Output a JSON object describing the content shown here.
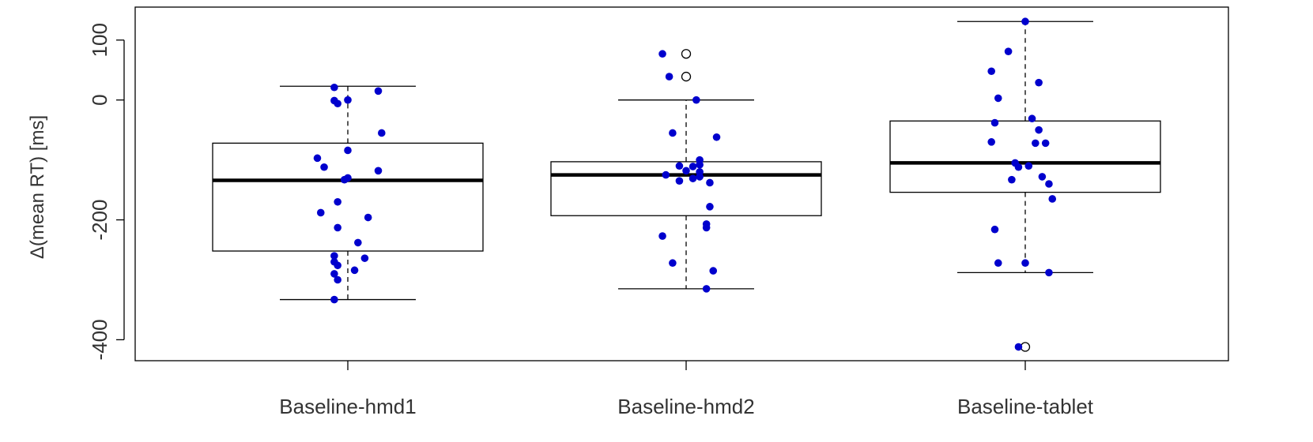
{
  "chart_data": {
    "type": "boxplot",
    "title": "",
    "xlabel": "",
    "ylabel": "Δ(mean RT) [ms]",
    "ylim": [
      -435,
      155
    ],
    "yticks": [
      100,
      0,
      -200,
      -400
    ],
    "grid": false,
    "legend": "none",
    "categories": [
      "Baseline-hmd1",
      "Baseline-hmd2",
      "Baseline-tablet"
    ],
    "boxes": [
      {
        "whisker_low": -333,
        "q1": -252,
        "median": -134,
        "q3": -72,
        "whisker_high": 23,
        "outliers": []
      },
      {
        "whisker_low": -315,
        "q1": -193,
        "median": -125,
        "q3": -103,
        "whisker_high": 0,
        "outliers": [
          77,
          39
        ]
      },
      {
        "whisker_low": -288,
        "q1": -154,
        "median": -105,
        "q3": -35,
        "whisker_high": 131,
        "outliers": [
          -412
        ]
      }
    ],
    "points": [
      {
        "category": 0,
        "jitter": -0.04,
        "values": [
          21,
          -1,
          -260,
          -270,
          -290,
          -333
        ]
      },
      {
        "category": 0,
        "jitter": -0.03,
        "values": [
          -6,
          -170,
          -213,
          -276
        ]
      },
      {
        "category": 0,
        "jitter": 0.0,
        "values": [
          0,
          -84,
          -130
        ]
      },
      {
        "category": 0,
        "jitter": -0.01,
        "values": [
          -133
        ]
      },
      {
        "category": 0,
        "jitter": 0.09,
        "values": [
          15,
          -118
        ]
      },
      {
        "category": 0,
        "jitter": 0.1,
        "values": [
          -55
        ]
      },
      {
        "category": 0,
        "jitter": -0.09,
        "values": [
          -97
        ]
      },
      {
        "category": 0,
        "jitter": -0.07,
        "values": [
          -112
        ]
      },
      {
        "category": 0,
        "jitter": -0.08,
        "values": [
          -188
        ]
      },
      {
        "category": 0,
        "jitter": 0.06,
        "values": [
          -196
        ]
      },
      {
        "category": 0,
        "jitter": 0.03,
        "values": [
          -238
        ]
      },
      {
        "category": 0,
        "jitter": 0.05,
        "values": [
          -264
        ]
      },
      {
        "category": 0,
        "jitter": 0.02,
        "values": [
          -284
        ]
      },
      {
        "category": 0,
        "jitter": -0.03,
        "values": [
          -300
        ]
      },
      {
        "category": 1,
        "jitter": -0.07,
        "values": [
          77
        ]
      },
      {
        "category": 1,
        "jitter": -0.05,
        "values": [
          39
        ]
      },
      {
        "category": 1,
        "jitter": 0.03,
        "values": [
          0
        ]
      },
      {
        "category": 1,
        "jitter": -0.04,
        "values": [
          -55
        ]
      },
      {
        "category": 1,
        "jitter": 0.09,
        "values": [
          -62
        ]
      },
      {
        "category": 1,
        "jitter": 0.04,
        "values": [
          -100,
          -108,
          -120,
          -128
        ]
      },
      {
        "category": 1,
        "jitter": 0.02,
        "values": [
          -111,
          -131
        ]
      },
      {
        "category": 1,
        "jitter": -0.02,
        "values": [
          -110,
          -135
        ]
      },
      {
        "category": 1,
        "jitter": 0.0,
        "values": [
          -118
        ]
      },
      {
        "category": 1,
        "jitter": -0.06,
        "values": [
          -125
        ]
      },
      {
        "category": 1,
        "jitter": 0.07,
        "values": [
          -138,
          -178
        ]
      },
      {
        "category": 1,
        "jitter": 0.06,
        "values": [
          -207,
          -213
        ]
      },
      {
        "category": 1,
        "jitter": -0.07,
        "values": [
          -227
        ]
      },
      {
        "category": 1,
        "jitter": -0.04,
        "values": [
          -272
        ]
      },
      {
        "category": 1,
        "jitter": 0.08,
        "values": [
          -285
        ]
      },
      {
        "category": 1,
        "jitter": 0.06,
        "values": [
          -315
        ]
      },
      {
        "category": 2,
        "jitter": 0.0,
        "values": [
          131
        ]
      },
      {
        "category": 2,
        "jitter": -0.05,
        "values": [
          81
        ]
      },
      {
        "category": 2,
        "jitter": -0.1,
        "values": [
          48
        ]
      },
      {
        "category": 2,
        "jitter": 0.04,
        "values": [
          29
        ]
      },
      {
        "category": 2,
        "jitter": -0.08,
        "values": [
          3
        ]
      },
      {
        "category": 2,
        "jitter": -0.09,
        "values": [
          -38
        ]
      },
      {
        "category": 2,
        "jitter": 0.02,
        "values": [
          -31
        ]
      },
      {
        "category": 2,
        "jitter": 0.04,
        "values": [
          -50
        ]
      },
      {
        "category": 2,
        "jitter": -0.1,
        "values": [
          -70
        ]
      },
      {
        "category": 2,
        "jitter": 0.03,
        "values": [
          -72
        ]
      },
      {
        "category": 2,
        "jitter": 0.06,
        "values": [
          -72
        ]
      },
      {
        "category": 2,
        "jitter": -0.03,
        "values": [
          -105
        ]
      },
      {
        "category": 2,
        "jitter": 0.01,
        "values": [
          -110
        ]
      },
      {
        "category": 2,
        "jitter": -0.02,
        "values": [
          -112
        ]
      },
      {
        "category": 2,
        "jitter": 0.05,
        "values": [
          -128
        ]
      },
      {
        "category": 2,
        "jitter": 0.07,
        "values": [
          -140
        ]
      },
      {
        "category": 2,
        "jitter": -0.04,
        "values": [
          -133
        ]
      },
      {
        "category": 2,
        "jitter": 0.08,
        "values": [
          -165
        ]
      },
      {
        "category": 2,
        "jitter": -0.09,
        "values": [
          -216
        ]
      },
      {
        "category": 2,
        "jitter": -0.08,
        "values": [
          -272
        ]
      },
      {
        "category": 2,
        "jitter": 0.0,
        "values": [
          -272
        ]
      },
      {
        "category": 2,
        "jitter": 0.07,
        "values": [
          -288
        ]
      },
      {
        "category": 2,
        "jitter": -0.02,
        "values": [
          -412
        ]
      }
    ],
    "colors": {
      "points": "#0000cd",
      "box": "#000000",
      "outlier_fill": "#ffffff"
    }
  }
}
